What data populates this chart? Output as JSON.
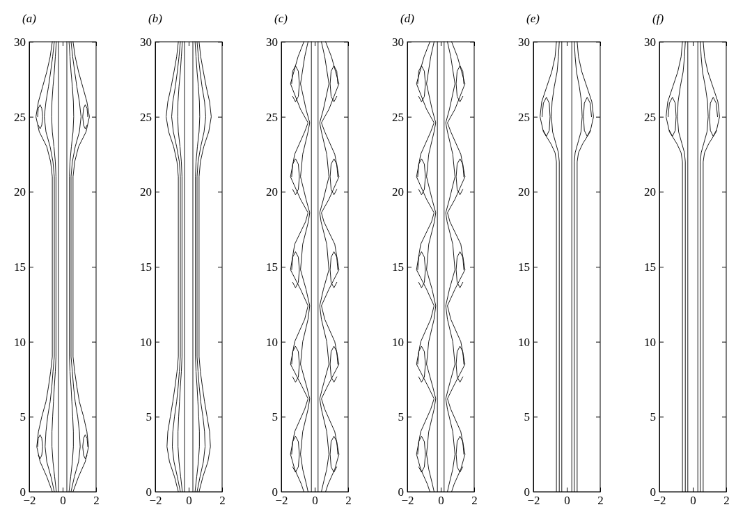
{
  "chart_data": [
    {
      "type": "line",
      "title": "(a)",
      "xlim": [
        -2,
        2
      ],
      "ylim": [
        0,
        30
      ],
      "xticks": [
        -2,
        0,
        2
      ],
      "yticks": [
        0,
        5,
        10,
        15,
        20,
        25,
        30
      ],
      "series": [
        {
          "color": "#000000",
          "x": [
            0.62,
            0.95,
            1.35,
            1.55,
            1.45,
            1.25,
            1.0,
            0.85,
            0.72,
            0.62,
            0.62,
            0.72,
            0.95,
            1.4,
            1.6,
            1.45,
            1.2,
            0.95,
            0.75,
            0.62
          ],
          "values": [
            0,
            1,
            2,
            3,
            4,
            5,
            6,
            7,
            8,
            9,
            21,
            22,
            23,
            24,
            25,
            26,
            27,
            28,
            29,
            30
          ]
        },
        {
          "color": "#000000",
          "x": [
            -0.62,
            -0.95,
            -1.35,
            -1.55,
            -1.45,
            -1.25,
            -1.0,
            -0.85,
            -0.72,
            -0.62,
            -0.62,
            -0.72,
            -0.95,
            -1.4,
            -1.6,
            -1.45,
            -1.2,
            -0.95,
            -0.75,
            -0.62
          ],
          "values": [
            0,
            1,
            2,
            3,
            4,
            5,
            6,
            7,
            8,
            9,
            21,
            22,
            23,
            24,
            25,
            26,
            27,
            28,
            29,
            30
          ]
        },
        {
          "color": "#000000",
          "x": [
            0.5,
            0.7,
            0.95,
            1.05,
            1.0,
            0.9,
            0.75,
            0.65,
            0.58,
            0.5,
            0.5,
            0.58,
            0.75,
            1.0,
            1.1,
            1.0,
            0.85,
            0.72,
            0.6,
            0.5
          ],
          "values": [
            0,
            1,
            2,
            3,
            4,
            5,
            6,
            7,
            8,
            9,
            21,
            22,
            23,
            24,
            25,
            26,
            27,
            28,
            29,
            30
          ]
        },
        {
          "color": "#000000",
          "x": [
            -0.5,
            -0.7,
            -0.95,
            -1.05,
            -1.0,
            -0.9,
            -0.75,
            -0.65,
            -0.58,
            -0.5,
            -0.5,
            -0.58,
            -0.75,
            -1.0,
            -1.1,
            -1.0,
            -0.85,
            -0.72,
            -0.6,
            -0.5
          ],
          "values": [
            0,
            1,
            2,
            3,
            4,
            5,
            6,
            7,
            8,
            9,
            21,
            22,
            23,
            24,
            25,
            26,
            27,
            28,
            29,
            30
          ]
        },
        {
          "color": "#000000",
          "x": [
            0.38,
            0.48,
            0.58,
            0.64,
            0.64,
            0.6,
            0.55,
            0.5,
            0.44,
            0.4,
            0.4,
            0.44,
            0.52,
            0.62,
            0.66,
            0.64,
            0.58,
            0.5,
            0.44,
            0.38
          ],
          "values": [
            0,
            1,
            2,
            3,
            4,
            5,
            6,
            7,
            8,
            9,
            21,
            22,
            23,
            24,
            25,
            26,
            27,
            28,
            29,
            30
          ]
        },
        {
          "color": "#000000",
          "x": [
            -0.38,
            -0.48,
            -0.58,
            -0.64,
            -0.64,
            -0.6,
            -0.55,
            -0.5,
            -0.44,
            -0.4,
            -0.4,
            -0.44,
            -0.52,
            -0.62,
            -0.66,
            -0.64,
            -0.58,
            -0.5,
            -0.44,
            -0.38
          ],
          "values": [
            0,
            1,
            2,
            3,
            4,
            5,
            6,
            7,
            8,
            9,
            21,
            22,
            23,
            24,
            25,
            26,
            27,
            28,
            29,
            30
          ]
        },
        {
          "color": "#000000",
          "x": [
            0.25,
            0.25
          ],
          "values": [
            0,
            30
          ]
        },
        {
          "color": "#000000",
          "x": [
            -0.25,
            -0.25
          ],
          "values": [
            0,
            30
          ]
        },
        {
          "color": "#000000",
          "x": [
            1.5,
            1.46,
            1.35,
            1.25,
            1.2,
            1.25,
            1.35,
            1.46
          ],
          "values": [
            3,
            3.56,
            3.8,
            3.56,
            3,
            2.44,
            2.2,
            2.44
          ]
        },
        {
          "color": "#000000",
          "x": [
            -1.5,
            -1.46,
            -1.35,
            -1.25,
            -1.2,
            -1.25,
            -1.35,
            -1.46
          ],
          "values": [
            3,
            3.56,
            3.8,
            3.56,
            3,
            2.44,
            2.2,
            2.44
          ]
        },
        {
          "color": "#000000",
          "x": [
            1.5,
            1.46,
            1.35,
            1.25,
            1.2,
            1.25,
            1.35,
            1.46
          ],
          "values": [
            25,
            25.56,
            25.8,
            25.56,
            25,
            24.44,
            24.2,
            24.44
          ]
        },
        {
          "color": "#000000",
          "x": [
            -1.5,
            -1.46,
            -1.35,
            -1.25,
            -1.2,
            -1.25,
            -1.35,
            -1.46
          ],
          "values": [
            25,
            25.56,
            25.8,
            25.56,
            25,
            24.44,
            24.2,
            24.44
          ]
        }
      ]
    },
    {
      "type": "line",
      "title": "(b)",
      "xlim": [
        -2,
        2
      ],
      "ylim": [
        0,
        30
      ],
      "xticks": [
        -2,
        0,
        2
      ],
      "yticks": [
        0,
        5,
        10,
        15,
        20,
        25,
        30
      ],
      "series": [
        {
          "color": "#000000",
          "x": [
            0.62,
            0.85,
            1.15,
            1.3,
            1.25,
            1.1,
            0.95,
            0.82,
            0.7,
            0.62,
            0.62,
            0.7,
            0.9,
            1.2,
            1.35,
            1.25,
            1.05,
            0.88,
            0.72,
            0.62
          ],
          "values": [
            0,
            1,
            2,
            3,
            4,
            5,
            6,
            7,
            8,
            9,
            21,
            22,
            23,
            24,
            25,
            26,
            27,
            28,
            29,
            30
          ]
        },
        {
          "color": "#000000",
          "x": [
            -0.62,
            -0.85,
            -1.15,
            -1.3,
            -1.25,
            -1.1,
            -0.95,
            -0.82,
            -0.7,
            -0.62,
            -0.62,
            -0.7,
            -0.9,
            -1.2,
            -1.35,
            -1.25,
            -1.05,
            -0.88,
            -0.72,
            -0.62
          ],
          "values": [
            0,
            1,
            2,
            3,
            4,
            5,
            6,
            7,
            8,
            9,
            21,
            22,
            23,
            24,
            25,
            26,
            27,
            28,
            29,
            30
          ]
        },
        {
          "color": "#000000",
          "x": [
            0.5,
            0.68,
            0.88,
            0.98,
            0.95,
            0.85,
            0.72,
            0.63,
            0.56,
            0.5,
            0.5,
            0.56,
            0.72,
            0.92,
            1.02,
            0.95,
            0.8,
            0.68,
            0.58,
            0.5
          ],
          "values": [
            0,
            1,
            2,
            3,
            4,
            5,
            6,
            7,
            8,
            9,
            21,
            22,
            23,
            24,
            25,
            26,
            27,
            28,
            29,
            30
          ]
        },
        {
          "color": "#000000",
          "x": [
            -0.5,
            -0.68,
            -0.88,
            -0.98,
            -0.95,
            -0.85,
            -0.72,
            -0.63,
            -0.56,
            -0.5,
            -0.5,
            -0.56,
            -0.72,
            -0.92,
            -1.02,
            -0.95,
            -0.8,
            -0.68,
            -0.58,
            -0.5
          ],
          "values": [
            0,
            1,
            2,
            3,
            4,
            5,
            6,
            7,
            8,
            9,
            21,
            22,
            23,
            24,
            25,
            26,
            27,
            28,
            29,
            30
          ]
        },
        {
          "color": "#000000",
          "x": [
            0.38,
            0.48,
            0.58,
            0.64,
            0.64,
            0.6,
            0.55,
            0.5,
            0.44,
            0.4,
            0.4,
            0.44,
            0.52,
            0.62,
            0.66,
            0.64,
            0.58,
            0.5,
            0.44,
            0.38
          ],
          "values": [
            0,
            1,
            2,
            3,
            4,
            5,
            6,
            7,
            8,
            9,
            21,
            22,
            23,
            24,
            25,
            26,
            27,
            28,
            29,
            30
          ]
        },
        {
          "color": "#000000",
          "x": [
            -0.38,
            -0.48,
            -0.58,
            -0.64,
            -0.64,
            -0.6,
            -0.55,
            -0.5,
            -0.44,
            -0.4,
            -0.4,
            -0.44,
            -0.52,
            -0.62,
            -0.66,
            -0.64,
            -0.58,
            -0.5,
            -0.44,
            -0.38
          ],
          "values": [
            0,
            1,
            2,
            3,
            4,
            5,
            6,
            7,
            8,
            9,
            21,
            22,
            23,
            24,
            25,
            26,
            27,
            28,
            29,
            30
          ]
        },
        {
          "color": "#000000",
          "x": [
            0.25,
            0.25
          ],
          "values": [
            0,
            30
          ]
        },
        {
          "color": "#000000",
          "x": [
            -0.25,
            -0.25
          ],
          "values": [
            0,
            30
          ]
        }
      ]
    },
    {
      "type": "line",
      "title": "(c)",
      "xlim": [
        -2,
        2
      ],
      "ylim": [
        0,
        30
      ],
      "xticks": [
        -2,
        0,
        2
      ],
      "yticks": [
        0,
        5,
        10,
        15,
        20,
        25,
        30
      ],
      "series": [
        {
          "color": "#000000",
          "x": [
            0.65,
            0.8,
            1.2,
            1.45,
            1.2,
            0.6,
            0.4,
            0.75,
            1.45,
            1.2,
            0.6,
            0.4,
            0.85,
            1.45,
            1.2,
            0.55,
            0.4,
            0.85,
            1.45,
            1.2,
            0.6,
            0.4,
            0.85,
            1.45,
            1.0,
            0.65
          ],
          "values": [
            0,
            0.5,
            1.5,
            2.5,
            4,
            5.5,
            6.2,
            7,
            8.5,
            10,
            11.5,
            12.4,
            13.5,
            14.8,
            16.5,
            18,
            18.6,
            19.5,
            21,
            22.5,
            24,
            24.6,
            25.5,
            27.2,
            29,
            30
          ]
        },
        {
          "color": "#000000",
          "x": [
            -0.65,
            -0.8,
            -1.2,
            -1.45,
            -1.2,
            -0.6,
            -0.4,
            -0.75,
            -1.45,
            -1.2,
            -0.6,
            -0.4,
            -0.85,
            -1.45,
            -1.2,
            -0.55,
            -0.4,
            -0.85,
            -1.45,
            -1.2,
            -0.6,
            -0.4,
            -0.85,
            -1.45,
            -1.0,
            -0.65
          ],
          "values": [
            0,
            0.5,
            1.5,
            2.5,
            4,
            5.5,
            6.2,
            7,
            8.5,
            10,
            11.5,
            12.4,
            13.5,
            14.8,
            16.5,
            18,
            18.6,
            19.5,
            21,
            22.5,
            24,
            24.6,
            25.5,
            27.2,
            29,
            30
          ]
        },
        {
          "color": "#000000",
          "x": [
            0.4,
            0.5,
            0.72,
            0.85,
            0.72,
            0.4,
            0.3,
            0.48,
            0.85,
            0.72,
            0.4,
            0.3,
            0.52,
            0.85,
            0.72,
            0.38,
            0.3,
            0.52,
            0.85,
            0.72,
            0.4,
            0.3,
            0.52,
            0.85,
            0.6,
            0.4
          ],
          "values": [
            0,
            0.5,
            1.5,
            2.5,
            4,
            5.5,
            6.2,
            7,
            8.5,
            10,
            11.5,
            12.4,
            13.5,
            14.8,
            16.5,
            18,
            18.6,
            19.5,
            21,
            22.5,
            24,
            24.6,
            25.5,
            27.2,
            29,
            30
          ]
        },
        {
          "color": "#000000",
          "x": [
            -0.4,
            -0.5,
            -0.72,
            -0.85,
            -0.72,
            -0.4,
            -0.3,
            -0.48,
            -0.85,
            -0.72,
            -0.4,
            -0.3,
            -0.52,
            -0.85,
            -0.72,
            -0.38,
            -0.3,
            -0.52,
            -0.85,
            -0.72,
            -0.4,
            -0.3,
            -0.52,
            -0.85,
            -0.6,
            -0.4
          ],
          "values": [
            0,
            0.5,
            1.5,
            2.5,
            4,
            5.5,
            6.2,
            7,
            8.5,
            10,
            11.5,
            12.4,
            13.5,
            14.8,
            16.5,
            18,
            18.6,
            19.5,
            21,
            22.5,
            24,
            24.6,
            25.5,
            27.2,
            29,
            30
          ]
        },
        {
          "color": "#000000",
          "x": [
            0.2,
            0.2
          ],
          "values": [
            0,
            30
          ]
        },
        {
          "color": "#000000",
          "x": [
            -0.2,
            -0.2
          ],
          "values": [
            0,
            30
          ]
        },
        {
          "color": "#000000",
          "x": [
            1.38,
            1.32,
            1.15,
            0.98,
            0.92,
            0.98,
            1.15,
            1.32
          ],
          "values": [
            2.5,
            3.34,
            3.7,
            3.34,
            2.5,
            1.66,
            1.3,
            1.66
          ]
        },
        {
          "color": "#000000",
          "x": [
            1.38,
            1.32,
            1.15,
            0.98,
            0.92,
            0.98,
            1.15,
            1.32
          ],
          "values": [
            8.5,
            9.34,
            9.7,
            9.34,
            8.5,
            7.66,
            7.3,
            7.66
          ]
        },
        {
          "color": "#000000",
          "x": [
            1.38,
            1.32,
            1.15,
            0.98,
            0.92,
            0.98,
            1.15,
            1.32
          ],
          "values": [
            14.8,
            15.64,
            16,
            15.64,
            14.8,
            13.96,
            13.6,
            13.96
          ]
        },
        {
          "color": "#000000",
          "x": [
            1.38,
            1.32,
            1.15,
            0.98,
            0.92,
            0.98,
            1.15,
            1.32
          ],
          "values": [
            21,
            21.84,
            22.2,
            21.84,
            21,
            20.16,
            19.8,
            20.16
          ]
        },
        {
          "color": "#000000",
          "x": [
            1.38,
            1.32,
            1.15,
            0.98,
            0.92,
            0.98,
            1.15,
            1.32
          ],
          "values": [
            27.2,
            28.04,
            28.4,
            28.04,
            27.2,
            26.36,
            26,
            26.36
          ]
        },
        {
          "color": "#000000",
          "x": [
            -1.38,
            -1.32,
            -1.15,
            -0.98,
            -0.92,
            -0.98,
            -1.15,
            -1.32
          ],
          "values": [
            2.5,
            3.34,
            3.7,
            3.34,
            2.5,
            1.66,
            1.3,
            1.66
          ]
        },
        {
          "color": "#000000",
          "x": [
            -1.38,
            -1.32,
            -1.15,
            -0.98,
            -0.92,
            -0.98,
            -1.15,
            -1.32
          ],
          "values": [
            8.5,
            9.34,
            9.7,
            9.34,
            8.5,
            7.66,
            7.3,
            7.66
          ]
        },
        {
          "color": "#000000",
          "x": [
            -1.38,
            -1.32,
            -1.15,
            -0.98,
            -0.92,
            -0.98,
            -1.15,
            -1.32
          ],
          "values": [
            14.8,
            15.64,
            16,
            15.64,
            14.8,
            13.96,
            13.6,
            13.96
          ]
        },
        {
          "color": "#000000",
          "x": [
            -1.38,
            -1.32,
            -1.15,
            -0.98,
            -0.92,
            -0.98,
            -1.15,
            -1.32
          ],
          "values": [
            21,
            21.84,
            22.2,
            21.84,
            21,
            20.16,
            19.8,
            20.16
          ]
        },
        {
          "color": "#000000",
          "x": [
            -1.38,
            -1.32,
            -1.15,
            -0.98,
            -0.92,
            -0.98,
            -1.15,
            -1.32
          ],
          "values": [
            27.2,
            28.04,
            28.4,
            28.04,
            27.2,
            26.36,
            26,
            26.36
          ]
        }
      ]
    },
    {
      "type": "line",
      "title": "(d)",
      "xlim": [
        -2,
        2
      ],
      "ylim": [
        0,
        30
      ],
      "xticks": [
        -2,
        0,
        2
      ],
      "yticks": [
        0,
        5,
        10,
        15,
        20,
        25,
        30
      ],
      "series": [
        {
          "color": "#000000",
          "x": [
            0.65,
            0.8,
            1.2,
            1.45,
            1.2,
            0.6,
            0.4,
            0.75,
            1.45,
            1.2,
            0.6,
            0.4,
            0.85,
            1.45,
            1.2,
            0.55,
            0.4,
            0.85,
            1.45,
            1.2,
            0.6,
            0.4,
            0.85,
            1.45,
            1.0,
            0.65
          ],
          "values": [
            0,
            0.5,
            1.5,
            2.5,
            4,
            5.5,
            6.2,
            7,
            8.5,
            10,
            11.5,
            12.4,
            13.5,
            14.8,
            16.5,
            18,
            18.6,
            19.5,
            21,
            22.5,
            24,
            24.6,
            25.5,
            27.2,
            29,
            30
          ]
        },
        {
          "color": "#000000",
          "x": [
            -0.65,
            -0.8,
            -1.2,
            -1.45,
            -1.2,
            -0.6,
            -0.4,
            -0.75,
            -1.45,
            -1.2,
            -0.6,
            -0.4,
            -0.85,
            -1.45,
            -1.2,
            -0.55,
            -0.4,
            -0.85,
            -1.45,
            -1.2,
            -0.6,
            -0.4,
            -0.85,
            -1.45,
            -1.0,
            -0.65
          ],
          "values": [
            0,
            0.5,
            1.5,
            2.5,
            4,
            5.5,
            6.2,
            7,
            8.5,
            10,
            11.5,
            12.4,
            13.5,
            14.8,
            16.5,
            18,
            18.6,
            19.5,
            21,
            22.5,
            24,
            24.6,
            25.5,
            27.2,
            29,
            30
          ]
        },
        {
          "color": "#000000",
          "x": [
            0.4,
            0.5,
            0.72,
            0.85,
            0.72,
            0.4,
            0.3,
            0.48,
            0.85,
            0.72,
            0.4,
            0.3,
            0.52,
            0.85,
            0.72,
            0.38,
            0.3,
            0.52,
            0.85,
            0.72,
            0.4,
            0.3,
            0.52,
            0.85,
            0.6,
            0.4
          ],
          "values": [
            0,
            0.5,
            1.5,
            2.5,
            4,
            5.5,
            6.2,
            7,
            8.5,
            10,
            11.5,
            12.4,
            13.5,
            14.8,
            16.5,
            18,
            18.6,
            19.5,
            21,
            22.5,
            24,
            24.6,
            25.5,
            27.2,
            29,
            30
          ]
        },
        {
          "color": "#000000",
          "x": [
            -0.4,
            -0.5,
            -0.72,
            -0.85,
            -0.72,
            -0.4,
            -0.3,
            -0.48,
            -0.85,
            -0.72,
            -0.4,
            -0.3,
            -0.52,
            -0.85,
            -0.72,
            -0.38,
            -0.3,
            -0.52,
            -0.85,
            -0.72,
            -0.4,
            -0.3,
            -0.52,
            -0.85,
            -0.6,
            -0.4
          ],
          "values": [
            0,
            0.5,
            1.5,
            2.5,
            4,
            5.5,
            6.2,
            7,
            8.5,
            10,
            11.5,
            12.4,
            13.5,
            14.8,
            16.5,
            18,
            18.6,
            19.5,
            21,
            22.5,
            24,
            24.6,
            25.5,
            27.2,
            29,
            30
          ]
        },
        {
          "color": "#000000",
          "x": [
            0.2,
            0.2
          ],
          "values": [
            0,
            30
          ]
        },
        {
          "color": "#000000",
          "x": [
            -0.2,
            -0.2
          ],
          "values": [
            0,
            30
          ]
        },
        {
          "color": "#000000",
          "x": [
            1.38,
            1.32,
            1.15,
            0.98,
            0.92,
            0.98,
            1.15,
            1.32
          ],
          "values": [
            2.5,
            3.34,
            3.7,
            3.34,
            2.5,
            1.66,
            1.3,
            1.66
          ]
        },
        {
          "color": "#000000",
          "x": [
            1.38,
            1.32,
            1.15,
            0.98,
            0.92,
            0.98,
            1.15,
            1.32
          ],
          "values": [
            8.5,
            9.34,
            9.7,
            9.34,
            8.5,
            7.66,
            7.3,
            7.66
          ]
        },
        {
          "color": "#000000",
          "x": [
            1.38,
            1.32,
            1.15,
            0.98,
            0.92,
            0.98,
            1.15,
            1.32
          ],
          "values": [
            14.8,
            15.64,
            16,
            15.64,
            14.8,
            13.96,
            13.6,
            13.96
          ]
        },
        {
          "color": "#000000",
          "x": [
            1.38,
            1.32,
            1.15,
            0.98,
            0.92,
            0.98,
            1.15,
            1.32
          ],
          "values": [
            21,
            21.84,
            22.2,
            21.84,
            21,
            20.16,
            19.8,
            20.16
          ]
        },
        {
          "color": "#000000",
          "x": [
            1.38,
            1.32,
            1.15,
            0.98,
            0.92,
            0.98,
            1.15,
            1.32
          ],
          "values": [
            27.2,
            28.04,
            28.4,
            28.04,
            27.2,
            26.36,
            26,
            26.36
          ]
        },
        {
          "color": "#000000",
          "x": [
            -1.38,
            -1.32,
            -1.15,
            -0.98,
            -0.92,
            -0.98,
            -1.15,
            -1.32
          ],
          "values": [
            2.5,
            3.34,
            3.7,
            3.34,
            2.5,
            1.66,
            1.3,
            1.66
          ]
        },
        {
          "color": "#000000",
          "x": [
            -1.38,
            -1.32,
            -1.15,
            -0.98,
            -0.92,
            -0.98,
            -1.15,
            -1.32
          ],
          "values": [
            8.5,
            9.34,
            9.7,
            9.34,
            8.5,
            7.66,
            7.3,
            7.66
          ]
        },
        {
          "color": "#000000",
          "x": [
            -1.38,
            -1.32,
            -1.15,
            -0.98,
            -0.92,
            -0.98,
            -1.15,
            -1.32
          ],
          "values": [
            14.8,
            15.64,
            16,
            15.64,
            14.8,
            13.96,
            13.6,
            13.96
          ]
        },
        {
          "color": "#000000",
          "x": [
            -1.38,
            -1.32,
            -1.15,
            -0.98,
            -0.92,
            -0.98,
            -1.15,
            -1.32
          ],
          "values": [
            21,
            21.84,
            22.2,
            21.84,
            21,
            20.16,
            19.8,
            20.16
          ]
        },
        {
          "color": "#000000",
          "x": [
            -1.38,
            -1.32,
            -1.15,
            -0.98,
            -0.92,
            -0.98,
            -1.15,
            -1.32
          ],
          "values": [
            27.2,
            28.04,
            28.4,
            28.04,
            27.2,
            26.36,
            26,
            26.36
          ]
        }
      ]
    },
    {
      "type": "line",
      "title": "(e)",
      "xlim": [
        -2,
        2
      ],
      "ylim": [
        0,
        30
      ],
      "xticks": [
        -2,
        0,
        2
      ],
      "yticks": [
        0,
        5,
        10,
        15,
        20,
        25,
        30
      ],
      "series": [
        {
          "color": "#000000",
          "x": [
            0.62,
            0.62,
            0.7,
            0.95,
            1.4,
            1.6,
            1.5,
            1.2,
            0.9,
            0.7,
            0.62
          ],
          "values": [
            0,
            22,
            22.6,
            23.2,
            24,
            25,
            26,
            27,
            28,
            29,
            30
          ]
        },
        {
          "color": "#000000",
          "x": [
            -0.62,
            -0.62,
            -0.7,
            -0.95,
            -1.4,
            -1.6,
            -1.5,
            -1.2,
            -0.9,
            -0.7,
            -0.62
          ],
          "values": [
            0,
            22,
            22.6,
            23.2,
            24,
            25,
            26,
            27,
            28,
            29,
            30
          ]
        },
        {
          "color": "#000000",
          "x": [
            0.45,
            0.45,
            0.5,
            0.65,
            0.85,
            0.92,
            0.88,
            0.75,
            0.58,
            0.5,
            0.45
          ],
          "values": [
            0,
            22,
            22.6,
            23.2,
            24,
            25,
            26,
            27,
            28,
            29,
            30
          ]
        },
        {
          "color": "#000000",
          "x": [
            -0.45,
            -0.45,
            -0.5,
            -0.65,
            -0.85,
            -0.92,
            -0.88,
            -0.75,
            -0.58,
            -0.5,
            -0.45
          ],
          "values": [
            0,
            22,
            22.6,
            23.2,
            24,
            25,
            26,
            27,
            28,
            29,
            30
          ]
        },
        {
          "color": "#000000",
          "x": [
            0.3,
            0.3
          ],
          "values": [
            0,
            30
          ]
        },
        {
          "color": "#000000",
          "x": [
            -0.3,
            -0.3
          ],
          "values": [
            0,
            30
          ]
        },
        {
          "color": "#000000",
          "x": [
            1.48,
            1.4,
            1.22,
            1.05,
            1.0,
            1.05,
            1.22,
            1.4
          ],
          "values": [
            25,
            25.91,
            26.3,
            25.91,
            25,
            24.09,
            23.7,
            24.09
          ]
        },
        {
          "color": "#000000",
          "x": [
            -1.48,
            -1.4,
            -1.22,
            -1.05,
            -1.0,
            -1.05,
            -1.22,
            -1.4
          ],
          "values": [
            25,
            25.91,
            26.3,
            25.91,
            25,
            24.09,
            23.7,
            24.09
          ]
        }
      ]
    },
    {
      "type": "line",
      "title": "(f)",
      "xlim": [
        -2,
        2
      ],
      "ylim": [
        0,
        30
      ],
      "xticks": [
        -2,
        0,
        2
      ],
      "yticks": [
        0,
        5,
        10,
        15,
        20,
        25,
        30
      ],
      "series": [
        {
          "color": "#000000",
          "x": [
            0.62,
            0.62,
            0.7,
            0.95,
            1.4,
            1.6,
            1.5,
            1.2,
            0.9,
            0.7,
            0.62
          ],
          "values": [
            0,
            22,
            22.6,
            23.2,
            24,
            25,
            26,
            27,
            28,
            29,
            30
          ]
        },
        {
          "color": "#000000",
          "x": [
            -0.62,
            -0.62,
            -0.7,
            -0.95,
            -1.4,
            -1.6,
            -1.5,
            -1.2,
            -0.9,
            -0.7,
            -0.62
          ],
          "values": [
            0,
            22,
            22.6,
            23.2,
            24,
            25,
            26,
            27,
            28,
            29,
            30
          ]
        },
        {
          "color": "#000000",
          "x": [
            0.45,
            0.45,
            0.5,
            0.65,
            0.85,
            0.92,
            0.88,
            0.75,
            0.58,
            0.5,
            0.45
          ],
          "values": [
            0,
            22,
            22.6,
            23.2,
            24,
            25,
            26,
            27,
            28,
            29,
            30
          ]
        },
        {
          "color": "#000000",
          "x": [
            -0.45,
            -0.45,
            -0.5,
            -0.65,
            -0.85,
            -0.92,
            -0.88,
            -0.75,
            -0.58,
            -0.5,
            -0.45
          ],
          "values": [
            0,
            22,
            22.6,
            23.2,
            24,
            25,
            26,
            27,
            28,
            29,
            30
          ]
        },
        {
          "color": "#000000",
          "x": [
            0.3,
            0.3
          ],
          "values": [
            0,
            30
          ]
        },
        {
          "color": "#000000",
          "x": [
            -0.3,
            -0.3
          ],
          "values": [
            0,
            30
          ]
        },
        {
          "color": "#000000",
          "x": [
            1.48,
            1.4,
            1.22,
            1.05,
            1.0,
            1.05,
            1.22,
            1.4
          ],
          "values": [
            25,
            25.91,
            26.3,
            25.91,
            25,
            24.09,
            23.7,
            24.09
          ]
        },
        {
          "color": "#000000",
          "x": [
            -1.48,
            -1.4,
            -1.22,
            -1.05,
            -1.0,
            -1.05,
            -1.22,
            -1.4
          ],
          "values": [
            25,
            25.91,
            26.3,
            25.91,
            25,
            24.09,
            23.7,
            24.09
          ]
        }
      ]
    }
  ]
}
